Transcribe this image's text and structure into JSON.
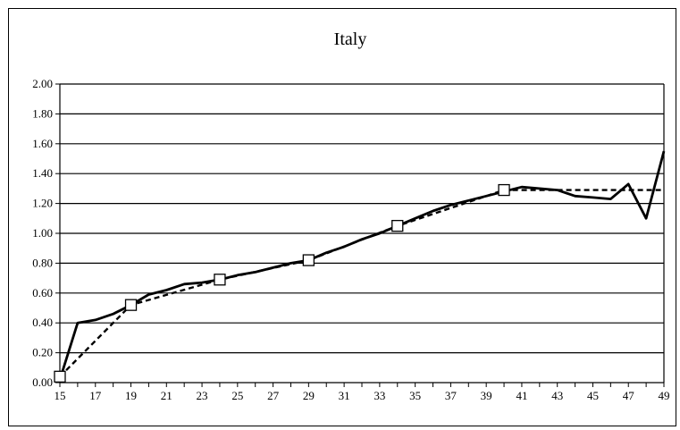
{
  "chart_data": {
    "type": "line",
    "title": "Italy",
    "xlabel": "",
    "ylabel": "",
    "xlim": [
      15,
      49
    ],
    "ylim": [
      0,
      2
    ],
    "x_ticks": [
      15,
      17,
      19,
      21,
      23,
      25,
      27,
      29,
      31,
      33,
      35,
      37,
      39,
      41,
      43,
      45,
      47,
      49
    ],
    "y_ticks": [
      "0.00",
      "0.20",
      "0.40",
      "0.60",
      "0.80",
      "1.00",
      "1.20",
      "1.40",
      "1.60",
      "1.80",
      "2.00"
    ],
    "grid": true,
    "legend": "none",
    "series": [
      {
        "style": "solid",
        "color": "#000000",
        "x": [
          15,
          16,
          17,
          18,
          19,
          20,
          21,
          22,
          23,
          24,
          25,
          26,
          27,
          28,
          29,
          30,
          31,
          32,
          33,
          34,
          35,
          36,
          37,
          38,
          39,
          40,
          41,
          42,
          43,
          44,
          45,
          46,
          47,
          48,
          49
        ],
        "y": [
          0.02,
          0.4,
          0.42,
          0.46,
          0.52,
          0.59,
          0.62,
          0.66,
          0.67,
          0.69,
          0.72,
          0.74,
          0.77,
          0.8,
          0.82,
          0.87,
          0.91,
          0.96,
          1.0,
          1.05,
          1.1,
          1.15,
          1.19,
          1.22,
          1.25,
          1.28,
          1.31,
          1.3,
          1.29,
          1.25,
          1.24,
          1.23,
          1.33,
          1.1,
          1.55
        ]
      },
      {
        "style": "dashed",
        "color": "#000000",
        "x": [
          15,
          19,
          24,
          29,
          34,
          40,
          49
        ],
        "y": [
          0.04,
          0.52,
          0.69,
          0.82,
          1.05,
          1.29,
          1.29
        ]
      },
      {
        "style": "markers",
        "marker": "square",
        "color": "#000000",
        "x": [
          15,
          19,
          24,
          29,
          34,
          40
        ],
        "y": [
          0.04,
          0.52,
          0.69,
          0.82,
          1.05,
          1.29
        ]
      }
    ]
  }
}
